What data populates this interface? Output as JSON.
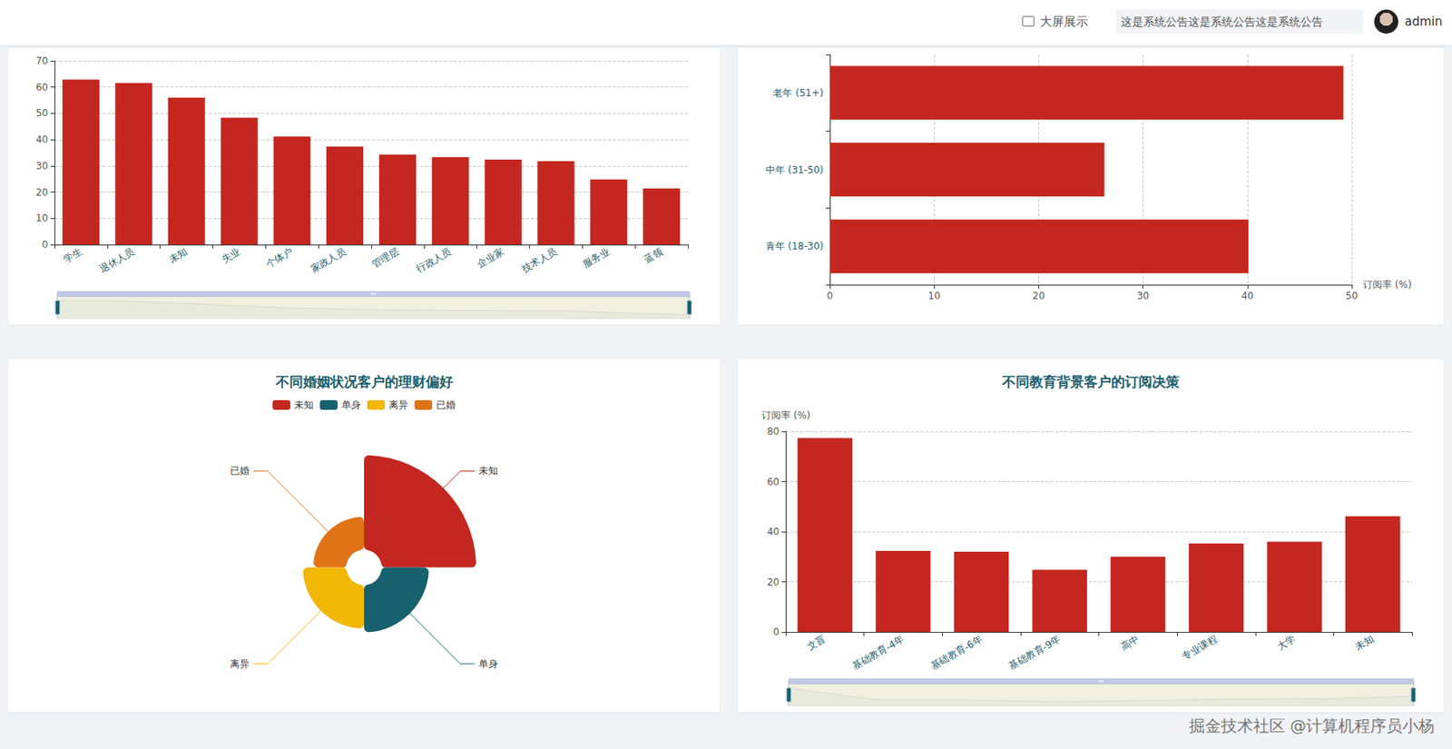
{
  "header": {
    "button": "大屏展示",
    "notice": "这是系统公告这是系统公告这是系统公告",
    "user": "admin"
  },
  "watermark": "掘金技术社区 @计算机程序员小杨",
  "chart_data": [
    {
      "type": "bar",
      "categories": [
        "学生",
        "退休人员",
        "未知",
        "失业",
        "个体户",
        "家政人员",
        "管理层",
        "行政人员",
        "企业家",
        "技术人员",
        "服务业",
        "蓝领"
      ],
      "values": [
        62.9,
        61.6,
        56,
        48.4,
        41.2,
        37.4,
        34.3,
        33.3,
        32.4,
        31.8,
        24.8,
        21.4
      ],
      "color": "#c4271f",
      "ylim": [
        0,
        70
      ],
      "yticks": [
        0,
        10,
        20,
        30,
        40,
        50,
        60,
        70
      ],
      "grid": true
    },
    {
      "type": "bar",
      "orientation": "horizontal",
      "categories": [
        "青年 (18-30)",
        "中年 (31-50)",
        "老年 (51+)"
      ],
      "values": [
        40.1,
        26.3,
        49.2
      ],
      "color": "#c4271f",
      "xlabel": "订阅率 (%)",
      "xlim": [
        0,
        50
      ],
      "xticks": [
        0,
        10,
        20,
        30,
        40,
        50
      ],
      "grid": true
    },
    {
      "type": "rose",
      "title": "不同婚姻状况客户的理财偏好",
      "categories": [
        "未知",
        "单身",
        "离异",
        "已婚"
      ],
      "values": [
        100,
        50,
        46,
        35
      ],
      "colors": [
        "#c4271f",
        "#17606e",
        "#f2b705",
        "#e07316"
      ],
      "legend": "top"
    },
    {
      "type": "bar",
      "title": "不同教育背景客户的订阅决策",
      "categories": [
        "文盲",
        "基础教育-4年",
        "基础教育-6年",
        "基础教育-9年",
        "高中",
        "专业课程",
        "大学",
        "未知"
      ],
      "values": [
        77.4,
        32.3,
        32,
        24.8,
        30,
        35.3,
        36,
        46.2
      ],
      "color": "#c4271f",
      "ylabel": "订阅率 (%)",
      "ylim": [
        0,
        80
      ],
      "yticks": [
        0,
        20,
        40,
        60,
        80
      ],
      "grid": true
    }
  ]
}
